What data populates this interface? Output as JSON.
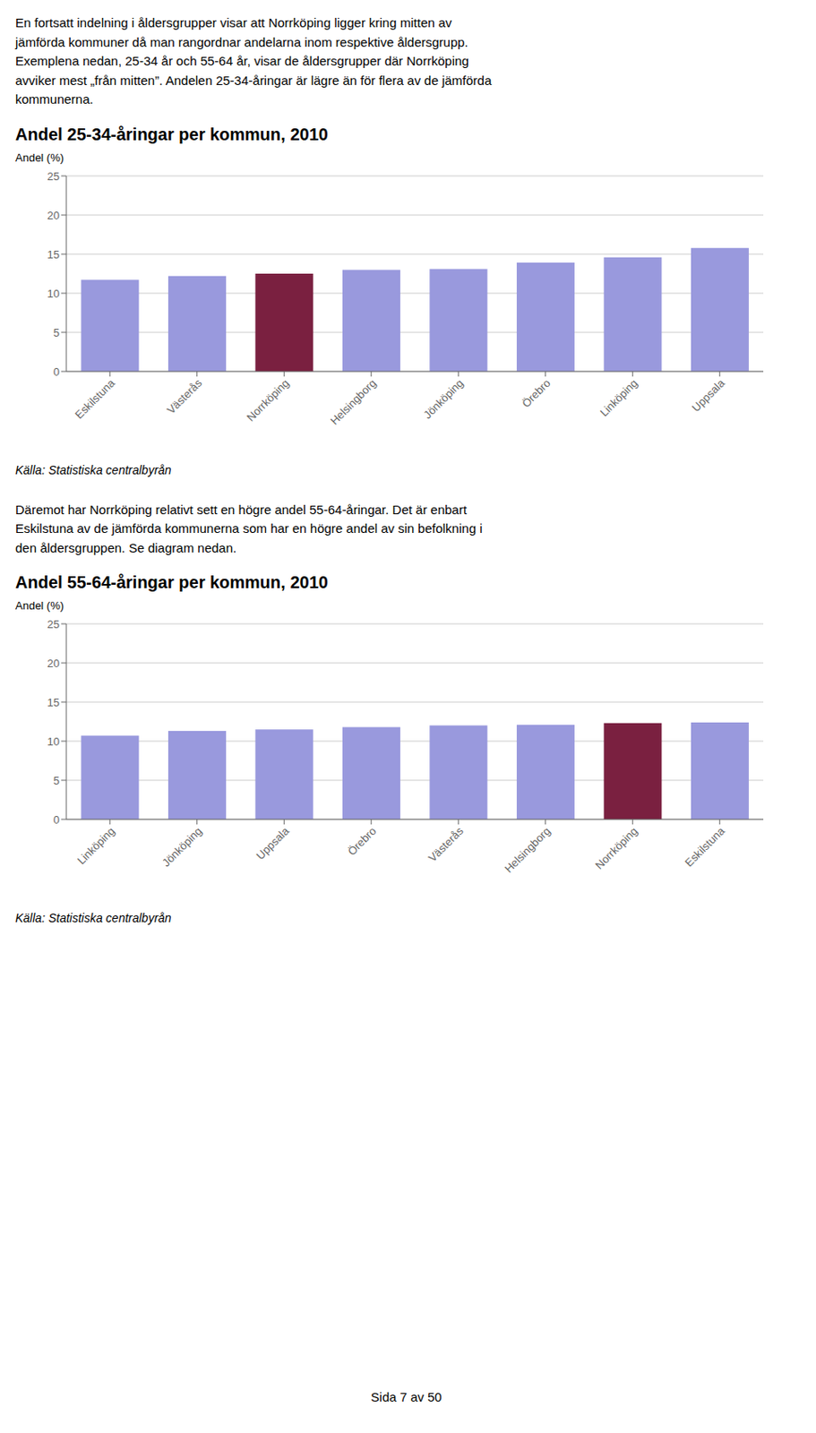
{
  "chart_data": [
    {
      "type": "bar",
      "text_above": "En fortsatt indelning i åldersgrupper visar att Norrköping ligger kring mitten av\njämförda kommuner då man rangordnar andelarna inom respektive åldersgrupp.\nExemplena nedan, 25-34 år och 55-64 år, visar de åldersgrupper där Norrköping\navviker mest „från mitten”. Andelen 25-34-åringar är lägre än för flera av de jämförda\nkommunerna.",
      "title": "Andel 25-34-åringar per kommun, 2010",
      "y_label": "Andel (%)",
      "categories": [
        "Eskilstuna",
        "Västerås",
        "Norrköping",
        "Helsingborg",
        "Jönköping",
        "Örebro",
        "Linköping",
        "Uppsala"
      ],
      "values": [
        11.7,
        12.2,
        12.5,
        13.0,
        13.1,
        13.9,
        14.6,
        15.8
      ],
      "colors": [
        "#9999dd",
        "#9999dd",
        "#7a2040",
        "#9999dd",
        "#9999dd",
        "#9999dd",
        "#9999dd",
        "#9999dd"
      ],
      "ylim": [
        0,
        25
      ],
      "yticks": [
        0,
        5,
        10,
        15,
        20,
        25
      ],
      "grid": true,
      "source": "Källa: Statistiska centralbyrån"
    },
    {
      "type": "bar",
      "text_above": "Däremot har Norrköping relativt sett en högre andel 55-64-åringar. Det är enbart\nEskilstuna av de jämförda kommunerna som har en högre andel av sin befolkning i\nden åldersgruppen. Se diagram nedan.",
      "title": "Andel 55-64-åringar per kommun, 2010",
      "y_label": "Andel (%)",
      "categories": [
        "Linköping",
        "Jönköping",
        "Uppsala",
        "Örebro",
        "Västerås",
        "Helsingborg",
        "Norrköping",
        "Eskilstuna"
      ],
      "values": [
        10.7,
        11.3,
        11.5,
        11.8,
        12.0,
        12.1,
        12.3,
        12.4
      ],
      "colors": [
        "#9999dd",
        "#9999dd",
        "#9999dd",
        "#9999dd",
        "#9999dd",
        "#9999dd",
        "#7a2040",
        "#9999dd"
      ],
      "ylim": [
        0,
        25
      ],
      "yticks": [
        0,
        5,
        10,
        15,
        20,
        25
      ],
      "grid": true,
      "source": "Källa: Statistiska centralbyrån"
    }
  ],
  "footer": "Sida 7 av 50"
}
